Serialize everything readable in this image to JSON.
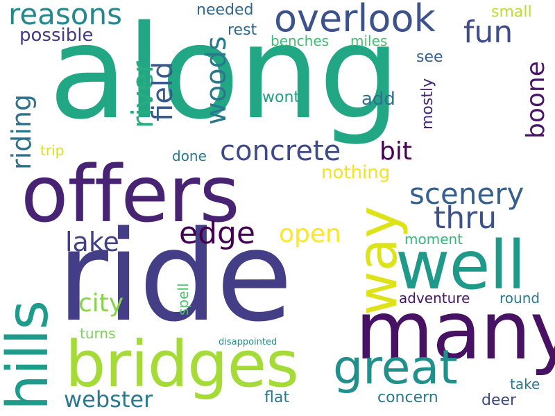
{
  "words": [
    {
      "text": "along",
      "color": "#22a785"
    },
    {
      "text": "ride",
      "color": "#433e85"
    },
    {
      "text": "offers",
      "color": "#482374"
    },
    {
      "text": "many",
      "color": "#471164"
    },
    {
      "text": "bridges",
      "color": "#a5db36"
    },
    {
      "text": "well",
      "color": "#1f9a8a"
    },
    {
      "text": "way",
      "color": "#dde318"
    },
    {
      "text": "hills",
      "color": "#1e9b8a"
    },
    {
      "text": "great",
      "color": "#21908d"
    },
    {
      "text": "overlook",
      "color": "#3b528b"
    },
    {
      "text": "reasons",
      "color": "#23898e"
    },
    {
      "text": "concrete",
      "color": "#3e4a89"
    },
    {
      "text": "scenery",
      "color": "#355f8d"
    },
    {
      "text": "edge",
      "color": "#440154"
    },
    {
      "text": "fun",
      "color": "#3e4c8a"
    },
    {
      "text": "riding",
      "color": "#2d718e"
    },
    {
      "text": "woods",
      "color": "#2a788e"
    },
    {
      "text": "river",
      "color": "#27ad81"
    },
    {
      "text": "field",
      "color": "#38598c"
    },
    {
      "text": "boone",
      "color": "#481668"
    },
    {
      "text": "thru",
      "color": "#3b528b"
    },
    {
      "text": "lake",
      "color": "#424086"
    },
    {
      "text": "open",
      "color": "#fde725"
    },
    {
      "text": "city",
      "color": "#86d549"
    },
    {
      "text": "webster",
      "color": "#2a788e"
    },
    {
      "text": "bit",
      "color": "#440154"
    },
    {
      "text": "nothing",
      "color": "#f1e51d"
    },
    {
      "text": "possible",
      "color": "#443983"
    },
    {
      "text": "needed",
      "color": "#31688e"
    },
    {
      "text": "rest",
      "color": "#31688e"
    },
    {
      "text": "benches",
      "color": "#3fbc73"
    },
    {
      "text": "miles",
      "color": "#44bf70"
    },
    {
      "text": "see",
      "color": "#355f8d"
    },
    {
      "text": "small",
      "color": "#bddf26"
    },
    {
      "text": "mostly",
      "color": "#482677"
    },
    {
      "text": "wont",
      "color": "#1fa088"
    },
    {
      "text": "add",
      "color": "#2c728e"
    },
    {
      "text": "trip",
      "color": "#d8e219"
    },
    {
      "text": "done",
      "color": "#2a788e"
    },
    {
      "text": "moment",
      "color": "#35b779"
    },
    {
      "text": "adventure",
      "color": "#481668"
    },
    {
      "text": "round",
      "color": "#2a788e"
    },
    {
      "text": "spell",
      "color": "#4ac16d"
    },
    {
      "text": "turns",
      "color": "#7ad151"
    },
    {
      "text": "disappointed",
      "color": "#21908d"
    },
    {
      "text": "take",
      "color": "#2a788e"
    },
    {
      "text": "flat",
      "color": "#2a788e"
    },
    {
      "text": "concern",
      "color": "#2a788e"
    },
    {
      "text": "deer",
      "color": "#3e4c8a"
    }
  ]
}
